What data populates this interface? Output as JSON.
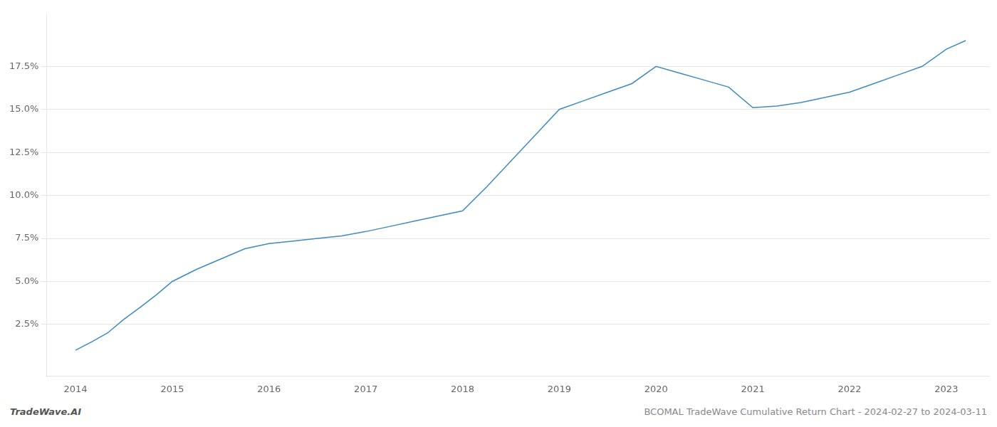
{
  "chart_data": {
    "type": "line",
    "annotations": [
      "TradeWave.AI",
      "BCOMAL TradeWave Cumulative Return Chart - 2024-02-27 to 2024-03-11"
    ],
    "x": [
      2014.0,
      2014.17,
      2014.33,
      2014.5,
      2014.67,
      2014.83,
      2015.0,
      2015.25,
      2015.5,
      2015.75,
      2016.0,
      2016.25,
      2016.5,
      2016.75,
      2017.0,
      2017.25,
      2017.5,
      2017.75,
      2018.0,
      2018.25,
      2018.5,
      2018.75,
      2019.0,
      2019.25,
      2019.5,
      2019.75,
      2020.0,
      2020.25,
      2020.5,
      2020.75,
      2021.0,
      2021.25,
      2021.5,
      2021.75,
      2022.0,
      2022.25,
      2022.5,
      2022.75,
      2023.0,
      2023.2
    ],
    "values": [
      1.0,
      1.5,
      2.0,
      2.8,
      3.5,
      4.2,
      5.0,
      5.7,
      6.3,
      6.9,
      7.2,
      7.35,
      7.5,
      7.65,
      7.9,
      8.2,
      8.5,
      8.8,
      9.1,
      10.5,
      12.0,
      13.5,
      15.0,
      15.5,
      16.0,
      16.5,
      17.5,
      17.1,
      16.7,
      16.3,
      15.1,
      15.2,
      15.4,
      15.7,
      16.0,
      16.5,
      17.0,
      17.5,
      18.5,
      19.0
    ],
    "color": "#3d8bbf",
    "xlim": [
      2013.7,
      2023.45
    ],
    "xticks": [
      2014,
      2015,
      2016,
      2017,
      2018,
      2019,
      2020,
      2021,
      2022,
      2023
    ],
    "ylim": [
      -0.5,
      20.5
    ],
    "yticks": [
      {
        "value": 2.5,
        "label": "2.5%"
      },
      {
        "value": 5.0,
        "label": "5.0%"
      },
      {
        "value": 7.5,
        "label": "7.5%"
      },
      {
        "value": 10.0,
        "label": "10.0%"
      },
      {
        "value": 12.5,
        "label": "12.5%"
      },
      {
        "value": 15.0,
        "label": "15.0%"
      },
      {
        "value": 17.5,
        "label": "17.5%"
      }
    ],
    "grid": "y"
  }
}
